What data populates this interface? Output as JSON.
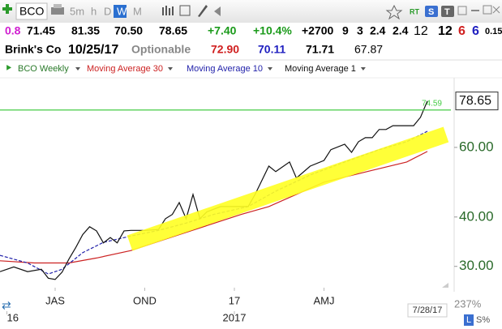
{
  "toolbar": {
    "symbol": "BCO",
    "intervals": [
      "5m",
      "h",
      "D",
      "W",
      "M"
    ],
    "active": "W",
    "rt": "RT",
    "s": "S",
    "t": "T"
  },
  "quote": {
    "items": [
      "0.8",
      "71.45",
      "81.35",
      "70.50",
      "78.65",
      "+7.40",
      "+10.4%",
      "+2700",
      "9",
      "3",
      "2.4",
      "2.4",
      "12",
      "12",
      "6",
      "6",
      "0.15"
    ]
  },
  "info": {
    "name": "Brink's Co",
    "date": "10/25/17",
    "optionable": "Optionable",
    "items": [
      "72.90",
      "70.11",
      "71.71",
      "67.87"
    ]
  },
  "chart_data": {
    "type": "line",
    "legend_title": "BCO Weekly",
    "log": true,
    "xlim": [
      0,
      64
    ],
    "ylim": [
      26.5,
      90
    ],
    "yticks": [
      {
        "value": 30,
        "label": "30.00"
      },
      {
        "value": 40,
        "label": "40.00"
      },
      {
        "value": 60,
        "label": "60.00"
      }
    ],
    "xticks": [
      {
        "value": 8,
        "label": "JAS"
      },
      {
        "value": 21,
        "label": "OND"
      },
      {
        "value": 34,
        "label": "17"
      },
      {
        "value": 47,
        "label": "AMJ"
      }
    ],
    "year_ticks": [
      {
        "value": 1,
        "label": "16"
      },
      {
        "value": 34,
        "label": "2017"
      }
    ],
    "last_price": 78.65,
    "hline": {
      "value": 74.59,
      "color": "#44cc44"
    },
    "end_date": "7/28/17",
    "zoom": "237%",
    "log_button": "L",
    "scale_button": "S%",
    "series": [
      {
        "name": "Moving Average 30",
        "color": "#cc2222",
        "dash": false,
        "x": [
          0,
          5,
          10,
          14,
          19,
          26,
          35,
          39,
          47,
          54,
          59,
          62
        ],
        "values": [
          31.0,
          30.6,
          30.6,
          31.5,
          32.9,
          36.1,
          40.6,
          42.5,
          49.0,
          52.5,
          55.1,
          58.6
        ]
      },
      {
        "name": "Moving Average 10",
        "color": "#2222aa",
        "dash": true,
        "x": [
          0,
          4,
          7,
          9,
          12,
          15,
          19,
          23,
          27,
          31,
          36,
          40,
          45,
          50,
          55,
          59,
          62
        ],
        "values": [
          32.0,
          30.6,
          28.7,
          29.5,
          32.5,
          34.5,
          35.8,
          37.0,
          38.6,
          40.6,
          42.5,
          46.5,
          51.1,
          55.1,
          59.2,
          62.0,
          65.9
        ]
      },
      {
        "name": "Moving Average 1",
        "color": "#111111",
        "dash": false,
        "x": [
          0,
          2,
          4,
          6,
          7,
          8,
          9,
          10,
          11,
          12,
          13,
          14,
          15,
          16,
          17,
          18,
          19,
          21,
          23,
          24,
          25,
          26,
          27,
          28,
          29,
          30,
          32,
          34,
          36,
          37,
          39,
          40,
          42,
          43,
          45,
          47,
          48,
          50,
          51,
          52,
          53,
          54,
          55,
          56,
          57,
          58,
          60,
          61,
          62
        ],
        "values": [
          29.1,
          29.9,
          29.1,
          29.5,
          28.0,
          27.8,
          29.0,
          31.3,
          33.5,
          36.1,
          37.8,
          36.9,
          34.4,
          35.5,
          34.4,
          36.9,
          37.0,
          37.0,
          37.2,
          39.6,
          40.6,
          43.5,
          39.6,
          45.6,
          39.6,
          41.2,
          42.5,
          42.5,
          42.5,
          45.6,
          53.8,
          52.1,
          55.1,
          50.2,
          53.8,
          55.6,
          59.2,
          61.1,
          58.3,
          62.0,
          63.5,
          63.5,
          66.6,
          66.6,
          68.1,
          68.1,
          68.1,
          71.5,
          78.65
        ]
      }
    ]
  }
}
